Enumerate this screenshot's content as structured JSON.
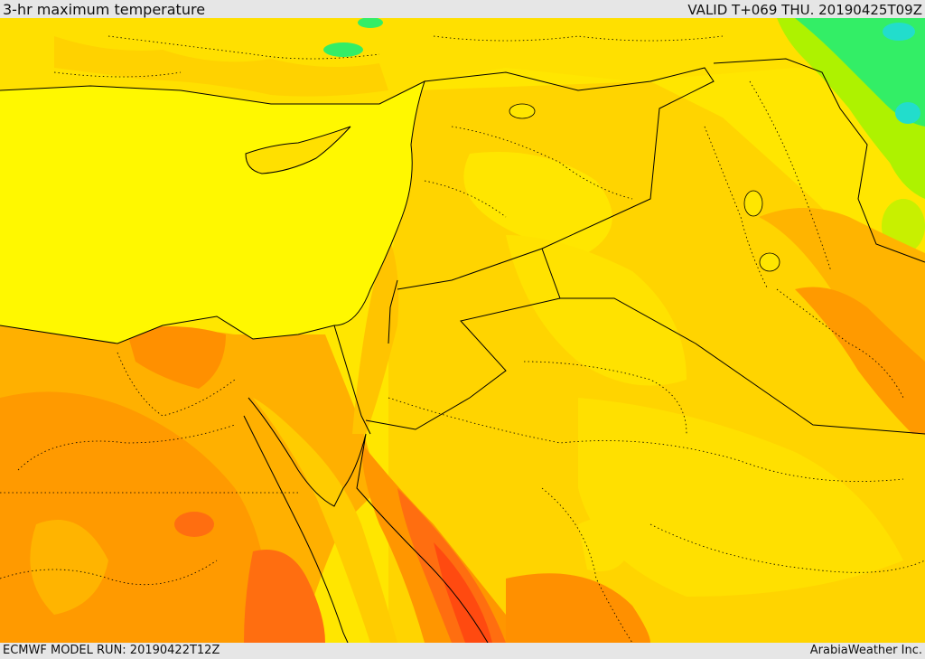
{
  "header": {
    "title": "3-hr maximum temperature",
    "valid": "VALID T+069 THU. 20190425T09Z"
  },
  "footer": {
    "model_run": "ECMWF MODEL RUN: 20190422T12Z",
    "credit": "ArabiaWeather Inc."
  },
  "colors": {
    "sea": "#fff800",
    "warm_yellow": "#ffe600",
    "gold": "#ffd200",
    "light_orange": "#ffb400",
    "orange": "#ff9600",
    "dark_orange": "#ff6e10",
    "red_orange": "#ff4a10",
    "green": "#33ee66",
    "cyan": "#22ddcc",
    "boundary": "#000000"
  }
}
